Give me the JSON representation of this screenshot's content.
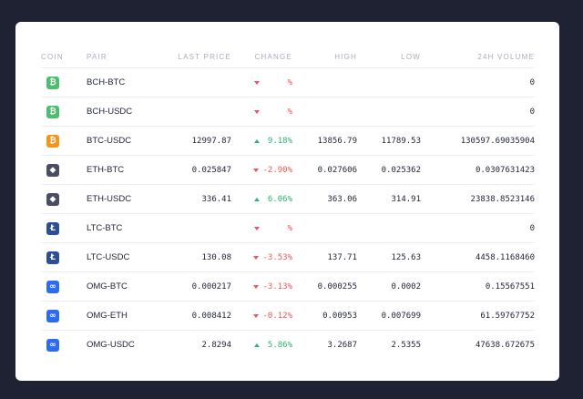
{
  "colors": {
    "background": "#1f2233",
    "card": "#ffffff",
    "negative": "#f05454",
    "positive": "#2ab473",
    "bch": "#4cbf6f",
    "btc": "#f7931a",
    "eth": "#4a4d63",
    "ltc": "#2b4f94",
    "omg": "#2f6bee"
  },
  "columns": {
    "coin": "COIN",
    "pair": "PAIR",
    "last_price": "LAST PRICE",
    "change": "CHANGE",
    "high": "HIGH",
    "low": "LOW",
    "volume": "24H VOLUME"
  },
  "rows": [
    {
      "coin": "BCH",
      "icon": "bitcoin-cash-icon",
      "glyph": "₿",
      "pair": "BCH-BTC",
      "last": "",
      "direction": "down",
      "change": "%",
      "high": "",
      "low": "",
      "volume": "0"
    },
    {
      "coin": "BCH",
      "icon": "bitcoin-cash-icon",
      "glyph": "₿",
      "pair": "BCH-USDC",
      "last": "",
      "direction": "down",
      "change": "%",
      "high": "",
      "low": "",
      "volume": "0"
    },
    {
      "coin": "BTC",
      "icon": "bitcoin-icon",
      "glyph": "₿",
      "pair": "BTC-USDC",
      "last": "12997.87",
      "direction": "up",
      "change": "9.18%",
      "high": "13856.79",
      "low": "11789.53",
      "volume": "130597.69035904"
    },
    {
      "coin": "ETH",
      "icon": "ethereum-icon",
      "glyph": "◆",
      "pair": "ETH-BTC",
      "last": "0.025847",
      "direction": "down",
      "change": "-2.90%",
      "high": "0.027606",
      "low": "0.025362",
      "volume": "0.0307631423"
    },
    {
      "coin": "ETH",
      "icon": "ethereum-icon",
      "glyph": "◆",
      "pair": "ETH-USDC",
      "last": "336.41",
      "direction": "up",
      "change": "6.06%",
      "high": "363.06",
      "low": "314.91",
      "volume": "23838.8523146"
    },
    {
      "coin": "LTC",
      "icon": "litecoin-icon",
      "glyph": "Ł",
      "pair": "LTC-BTC",
      "last": "",
      "direction": "down",
      "change": "%",
      "high": "",
      "low": "",
      "volume": "0"
    },
    {
      "coin": "LTC",
      "icon": "litecoin-icon",
      "glyph": "Ł",
      "pair": "LTC-USDC",
      "last": "130.08",
      "direction": "down",
      "change": "-3.53%",
      "high": "137.71",
      "low": "125.63",
      "volume": "4458.1168460"
    },
    {
      "coin": "OMG",
      "icon": "omisego-icon",
      "glyph": "∞",
      "pair": "OMG-BTC",
      "last": "0.000217",
      "direction": "down",
      "change": "-3.13%",
      "high": "0.000255",
      "low": "0.0002",
      "volume": "0.15567551"
    },
    {
      "coin": "OMG",
      "icon": "omisego-icon",
      "glyph": "∞",
      "pair": "OMG-ETH",
      "last": "0.008412",
      "direction": "down",
      "change": "-0.12%",
      "high": "0.00953",
      "low": "0.007699",
      "volume": "61.59767752"
    },
    {
      "coin": "OMG",
      "icon": "omisego-icon",
      "glyph": "∞",
      "pair": "OMG-USDC",
      "last": "2.8294",
      "direction": "up",
      "change": "5.86%",
      "high": "3.2687",
      "low": "2.5355",
      "volume": "47638.672675"
    }
  ]
}
